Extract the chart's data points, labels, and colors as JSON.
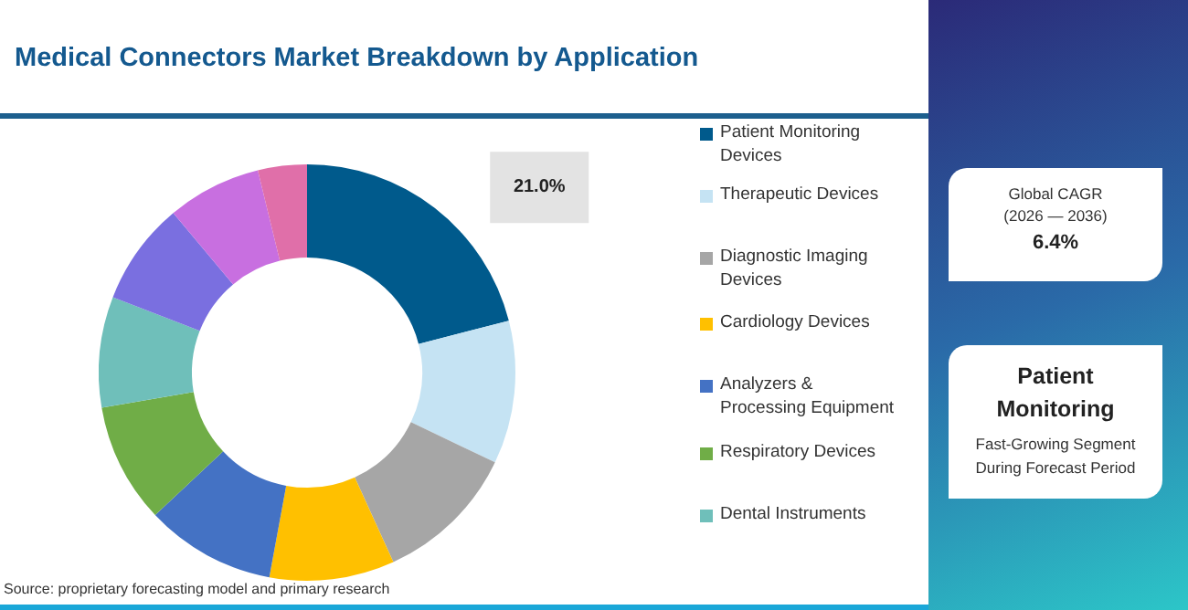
{
  "chart_data": {
    "type": "donut",
    "title": "Medical Connectors Market Breakdown by Application",
    "categories": [
      "Patient Monitoring Devices",
      "Therapeutic Devices",
      "Diagnostic Imaging Devices",
      "Cardiology Devices",
      "Analyzers & Processing Equipment",
      "Respiratory Devices",
      "Dental Instruments",
      null,
      null,
      null
    ],
    "values": [
      21.0,
      11.1,
      11.1,
      9.7,
      10.1,
      9.3,
      8.6,
      8.0,
      7.3,
      3.8
    ],
    "value_labels": [
      "21.0%",
      null,
      null,
      null,
      null,
      null,
      null,
      null,
      null,
      null
    ],
    "colors": [
      "#005a8c",
      "#c5e3f3",
      "#a6a6a6",
      "#ffc000",
      "#4472c4",
      "#70ad47",
      "#6fbfba",
      "#7a6fe0",
      "#c86fe0",
      "#e06fa9"
    ],
    "legend": "right",
    "annotations": [
      "Source: proprietary forecasting model and primary research",
      "Global CAGR",
      "(2026 — 2036)",
      "6.4%",
      "Patient Monitoring",
      "Fast-Growing Segment During Forecast Period"
    ]
  }
}
